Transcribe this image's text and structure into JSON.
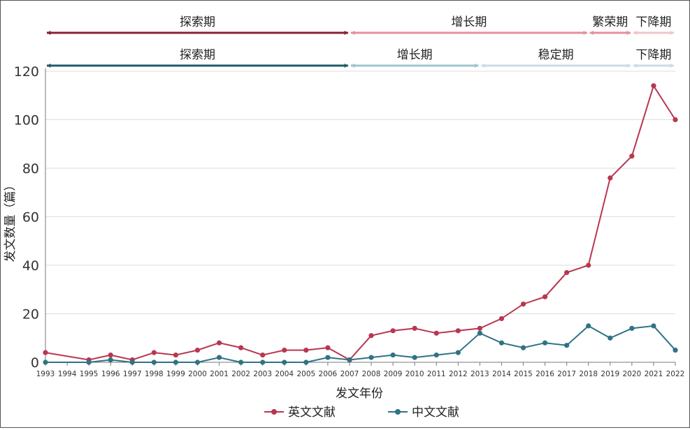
{
  "colors": {
    "english": "#b8374f",
    "chinese": "#2f7384",
    "phase_en": [
      "#8c1f33",
      "#e2909e",
      "#e2909e",
      "#f2c4cc"
    ],
    "phase_zh": [
      "#1f5c68",
      "#9fc3cf",
      "#c9dde4",
      "#c9dde4"
    ],
    "grid": "#dddddd",
    "axis": "#777777"
  },
  "phases_en": [
    {
      "label": "探索期",
      "start": "1993",
      "end": "2007"
    },
    {
      "label": "增长期",
      "start": "2007",
      "end": "2018"
    },
    {
      "label": "繁荣期",
      "start": "2018",
      "end": "2020"
    },
    {
      "label": "下降期",
      "start": "2020",
      "end": "2022"
    }
  ],
  "phases_zh": [
    {
      "label": "探索期",
      "start": "1993",
      "end": "2007"
    },
    {
      "label": "增长期",
      "start": "2007",
      "end": "2013"
    },
    {
      "label": "稳定期",
      "start": "2013",
      "end": "2020"
    },
    {
      "label": "下降期",
      "start": "2020",
      "end": "2022"
    }
  ],
  "chart_data": {
    "type": "line",
    "title": "",
    "xlabel": "发文年份",
    "ylabel": "发文数量（篇）",
    "ylim": [
      0,
      120
    ],
    "yticks": [
      0,
      20,
      40,
      60,
      80,
      100,
      120
    ],
    "grid": true,
    "legend_position": "bottom",
    "categories": [
      "1993",
      "1994",
      "1995",
      "1996",
      "1997",
      "1998",
      "1999",
      "2000",
      "2001",
      "2002",
      "2003",
      "2004",
      "2005",
      "2006",
      "2007",
      "2008",
      "2009",
      "2010",
      "2011",
      "2012",
      "2013",
      "2014",
      "2015",
      "2016",
      "2017",
      "2018",
      "2019",
      "2020",
      "2021",
      "2022"
    ],
    "series": [
      {
        "name": "英文文献",
        "color": "#b8374f",
        "points": [
          [
            "1993",
            4
          ],
          [
            "1995",
            1
          ],
          [
            "1996",
            3
          ],
          [
            "1997",
            1
          ],
          [
            "1998",
            4
          ],
          [
            "1999",
            3
          ],
          [
            "2000",
            5
          ],
          [
            "2001",
            8
          ],
          [
            "2002",
            6
          ],
          [
            "2003",
            3
          ],
          [
            "2004",
            5
          ],
          [
            "2005",
            5
          ],
          [
            "2006",
            6
          ],
          [
            "2007",
            1
          ],
          [
            "2008",
            11
          ],
          [
            "2009",
            13
          ],
          [
            "2010",
            14
          ],
          [
            "2011",
            12
          ],
          [
            "2012",
            13
          ],
          [
            "2013",
            14
          ],
          [
            "2014",
            18
          ],
          [
            "2015",
            24
          ],
          [
            "2016",
            27
          ],
          [
            "2017",
            37
          ],
          [
            "2018",
            40
          ],
          [
            "2019",
            76
          ],
          [
            "2020",
            85
          ],
          [
            "2021",
            114
          ],
          [
            "2022",
            100
          ]
        ]
      },
      {
        "name": "中文文献",
        "color": "#2f7384",
        "points": [
          [
            "1993",
            0
          ],
          [
            "1995",
            0
          ],
          [
            "1996",
            1
          ],
          [
            "1997",
            0
          ],
          [
            "1998",
            0
          ],
          [
            "1999",
            0
          ],
          [
            "2000",
            0
          ],
          [
            "2001",
            2
          ],
          [
            "2002",
            0
          ],
          [
            "2003",
            0
          ],
          [
            "2004",
            0
          ],
          [
            "2005",
            0
          ],
          [
            "2006",
            2
          ],
          [
            "2007",
            1
          ],
          [
            "2008",
            2
          ],
          [
            "2009",
            3
          ],
          [
            "2010",
            2
          ],
          [
            "2011",
            3
          ],
          [
            "2012",
            4
          ],
          [
            "2013",
            12
          ],
          [
            "2014",
            8
          ],
          [
            "2015",
            6
          ],
          [
            "2016",
            8
          ],
          [
            "2017",
            7
          ],
          [
            "2018",
            15
          ],
          [
            "2019",
            10
          ],
          [
            "2020",
            14
          ],
          [
            "2021",
            15
          ],
          [
            "2022",
            5
          ]
        ]
      }
    ]
  }
}
